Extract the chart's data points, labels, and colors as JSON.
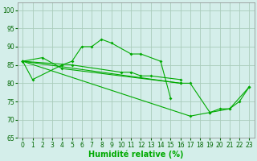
{
  "background_color": "#d4eeea",
  "grid_color": "#aaccbb",
  "line_color": "#00aa00",
  "xlabel": "Humidité relative (%)",
  "xlabel_fontsize": 7,
  "tick_fontsize": 5.5,
  "ylim": [
    65,
    102
  ],
  "xlim": [
    -0.5,
    23.5
  ],
  "yticks": [
    65,
    70,
    75,
    80,
    85,
    90,
    95,
    100
  ],
  "xticks": [
    0,
    1,
    2,
    3,
    4,
    5,
    6,
    7,
    8,
    9,
    10,
    11,
    12,
    13,
    14,
    15,
    16,
    17,
    18,
    19,
    20,
    21,
    22,
    23
  ],
  "series": [
    {
      "x": [
        0,
        1,
        4,
        5,
        6,
        7,
        8,
        9,
        11,
        12,
        14,
        15
      ],
      "y": [
        86,
        81,
        85,
        86,
        90,
        90,
        92,
        91,
        88,
        88,
        86,
        76
      ]
    },
    {
      "x": [
        0,
        5,
        10,
        11,
        12,
        13,
        16
      ],
      "y": [
        86,
        85,
        83,
        83,
        82,
        82,
        81
      ]
    },
    {
      "x": [
        0,
        2,
        4,
        16
      ],
      "y": [
        86,
        87,
        84,
        80
      ]
    },
    {
      "x": [
        0,
        16,
        17,
        19,
        20,
        21,
        23
      ],
      "y": [
        86,
        80,
        80,
        72,
        73,
        73,
        79
      ]
    },
    {
      "x": [
        0,
        17,
        19,
        21,
        22,
        23
      ],
      "y": [
        86,
        71,
        72,
        73,
        75,
        79
      ]
    }
  ]
}
